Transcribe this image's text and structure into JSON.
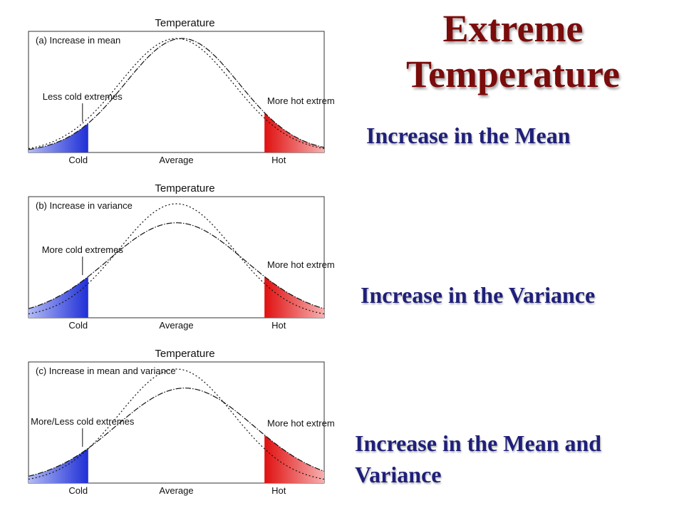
{
  "slide": {
    "title_line1": "Extreme",
    "title_line2": "Temperature",
    "captions": [
      "Increase in the Mean",
      "Increase in the Variance",
      "Increase in the Mean and",
      "Variance"
    ],
    "colors": {
      "title": "#7a0c0c",
      "caption": "#1f1f7a",
      "cold": "#1f2fd6",
      "hot": "#e01010"
    }
  },
  "panels": [
    {
      "axis_title": "Temperature",
      "panel_label": "(a) Increase in mean",
      "cold_annotation": "Less cold extremes",
      "hot_annotation": "More hot extremes",
      "tick_labels": [
        "Cold",
        "Average",
        "Hot"
      ],
      "previous_climate": {
        "mean": 0,
        "sd": 1
      },
      "new_climate": {
        "mean": 0.1,
        "sd": 1
      }
    },
    {
      "axis_title": "Temperature",
      "panel_label": "(b) Increase in variance",
      "cold_annotation": "More cold extremes",
      "hot_annotation": "More hot extremes",
      "tick_labels": [
        "Cold",
        "Average",
        "Hot"
      ],
      "previous_climate": {
        "mean": 0,
        "sd": 1
      },
      "new_climate": {
        "mean": 0,
        "sd": 1.2
      }
    },
    {
      "axis_title": "Temperature",
      "panel_label": "(c) Increase in mean and variance",
      "cold_annotation": "More/Less cold extremes",
      "hot_annotation": "More hot extremes",
      "tick_labels": [
        "Cold",
        "Average",
        "Hot"
      ],
      "previous_climate": {
        "mean": 0,
        "sd": 1
      },
      "new_climate": {
        "mean": 0.15,
        "sd": 1.2
      }
    }
  ]
}
